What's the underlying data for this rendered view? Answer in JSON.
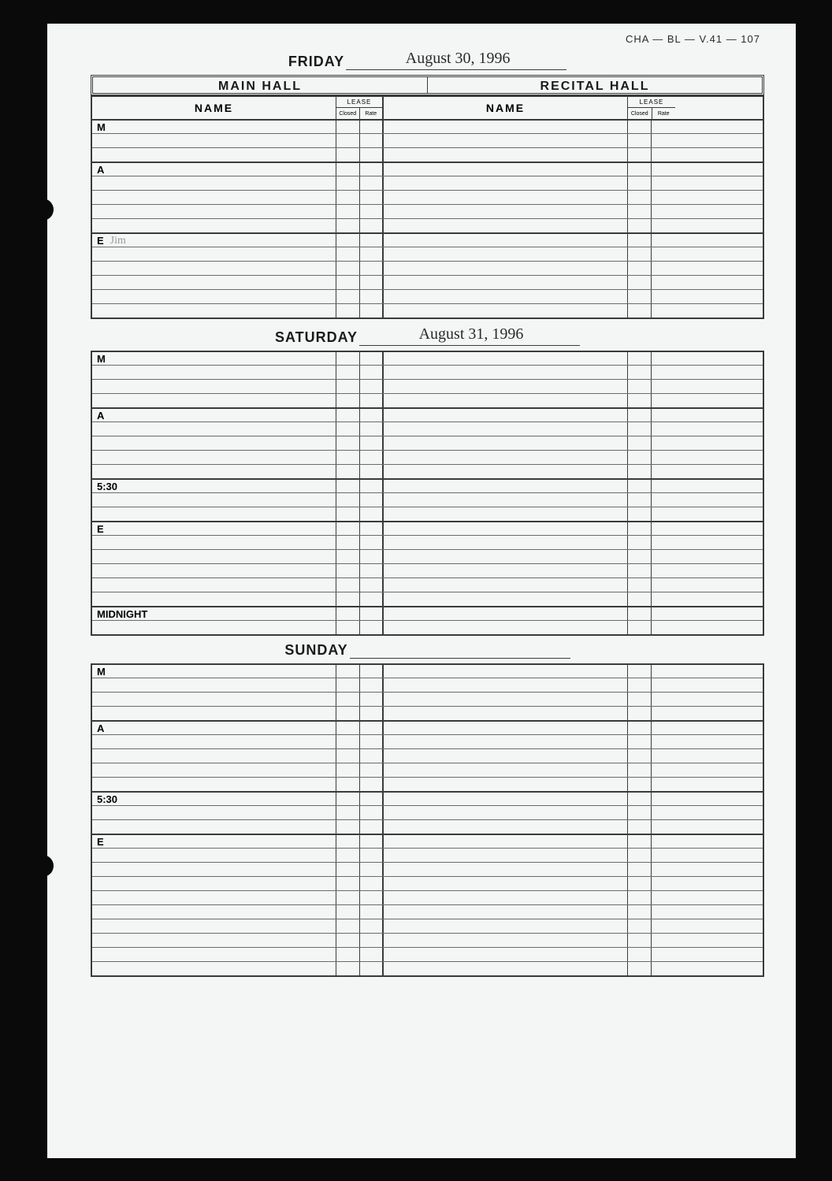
{
  "archive_label": "CHA — BL — V.41 — 107",
  "halls": {
    "main": "MAIN HALL",
    "recital": "RECITAL HALL"
  },
  "columns": {
    "name": "NAME",
    "lease": "LEASE",
    "closed": "Closed",
    "rate": "Rate"
  },
  "days": [
    {
      "label": "FRIDAY",
      "date": "August 30, 1996",
      "show_hall_headers": true,
      "sections": [
        {
          "label": "M",
          "rows": 3,
          "note": ""
        },
        {
          "label": "A",
          "rows": 5,
          "note": ""
        },
        {
          "label": "E",
          "rows": 6,
          "note": "Jim"
        }
      ]
    },
    {
      "label": "SATURDAY",
      "date": "August 31, 1996",
      "show_hall_headers": false,
      "sections": [
        {
          "label": "M",
          "rows": 4,
          "note": ""
        },
        {
          "label": "A",
          "rows": 5,
          "note": ""
        },
        {
          "label": "5:30",
          "rows": 3,
          "note": ""
        },
        {
          "label": "E",
          "rows": 6,
          "note": ""
        },
        {
          "label": "MIDNIGHT",
          "rows": 2,
          "note": ""
        }
      ]
    },
    {
      "label": "SUNDAY",
      "date": "",
      "show_hall_headers": false,
      "sections": [
        {
          "label": "M",
          "rows": 4,
          "note": ""
        },
        {
          "label": "A",
          "rows": 5,
          "note": ""
        },
        {
          "label": "5:30",
          "rows": 3,
          "note": ""
        },
        {
          "label": "E",
          "rows": 10,
          "note": ""
        }
      ]
    }
  ],
  "colors": {
    "page_bg": "#f4f6f5",
    "frame_bg": "#0a0a0a",
    "line_dark": "#3a3a3a",
    "line_light": "#6a6a6a",
    "text": "#1a1a1a"
  }
}
